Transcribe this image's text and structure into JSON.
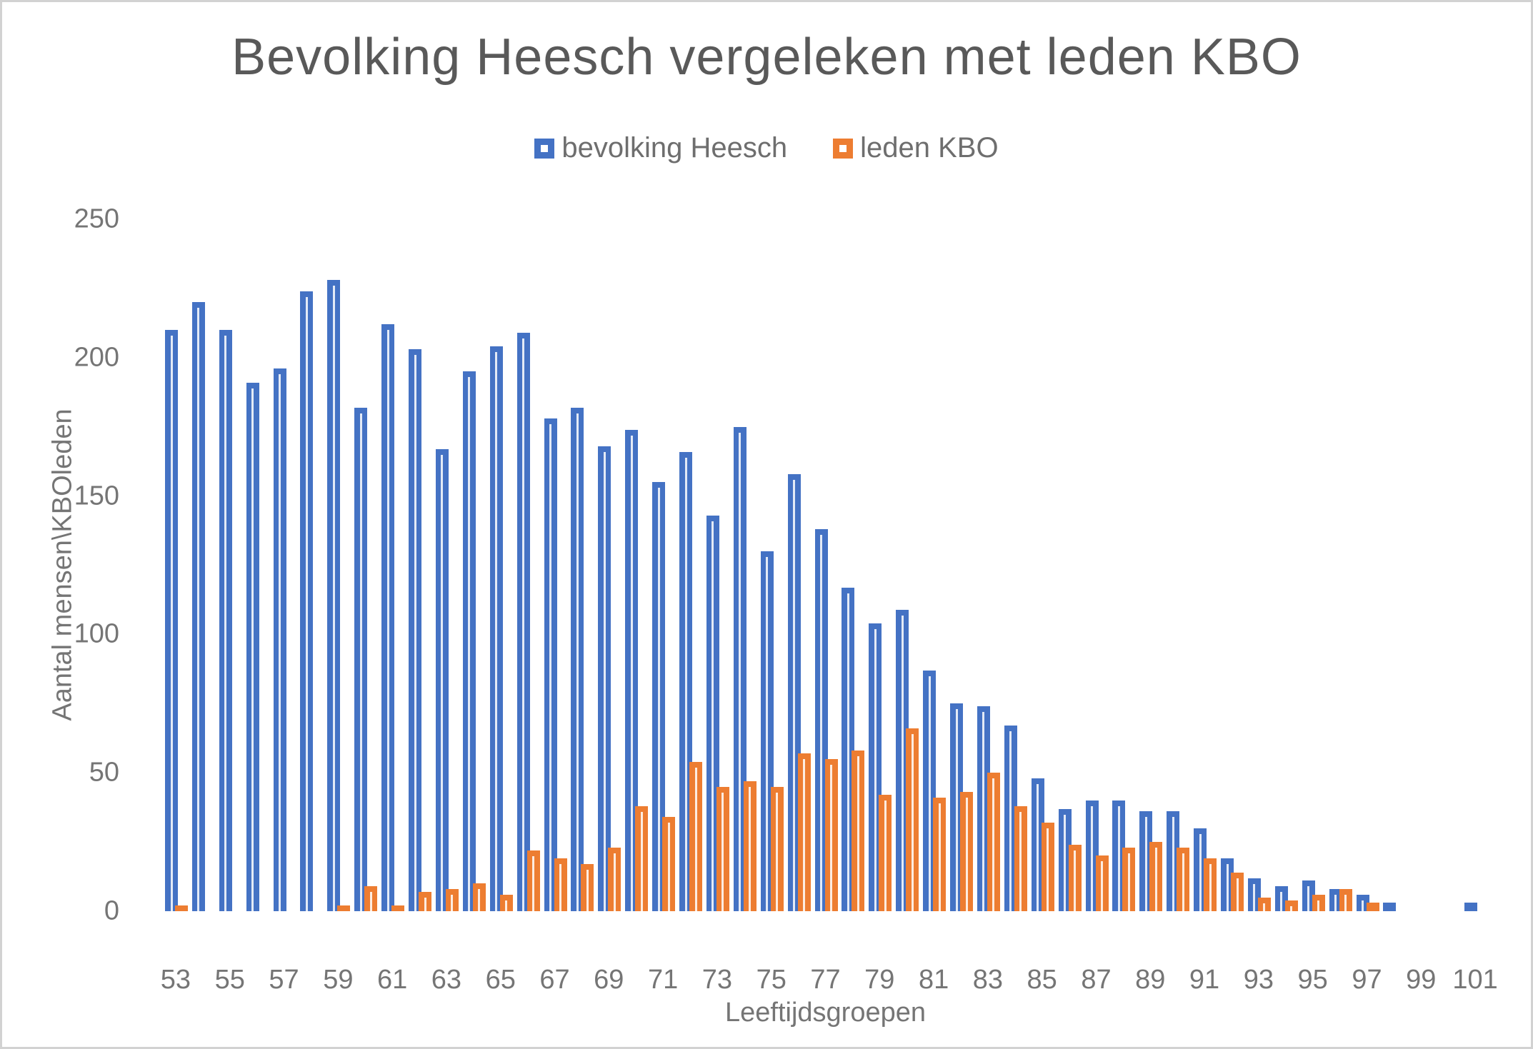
{
  "window": {
    "background": "#ffffff",
    "border_color": "#d2d2d2"
  },
  "chart_data": {
    "type": "bar",
    "title": "Bevolking Heesch vergeleken met leden KBO",
    "xlabel": "Leeftijdsgroepen",
    "ylabel": "Aantal mensen\\KBOleden",
    "categories": [
      53,
      54,
      55,
      56,
      57,
      58,
      59,
      60,
      61,
      62,
      63,
      64,
      65,
      66,
      67,
      68,
      69,
      70,
      71,
      72,
      73,
      74,
      75,
      76,
      77,
      78,
      79,
      80,
      81,
      82,
      83,
      84,
      85,
      86,
      87,
      88,
      89,
      90,
      91,
      92,
      93,
      94,
      95,
      96,
      97,
      98,
      99,
      100,
      101
    ],
    "series": [
      {
        "name": "bevolking Heesch",
        "color": "#4472C4",
        "values": [
          210,
          220,
          210,
          191,
          196,
          224,
          228,
          182,
          212,
          203,
          167,
          195,
          204,
          209,
          178,
          182,
          168,
          174,
          155,
          166,
          143,
          175,
          130,
          158,
          138,
          117,
          104,
          109,
          87,
          75,
          74,
          67,
          48,
          37,
          40,
          40,
          36,
          36,
          30,
          19,
          12,
          9,
          11,
          8,
          6,
          3,
          0,
          0,
          3
        ]
      },
      {
        "name": "leden KBO",
        "color": "#ED7D31",
        "values": [
          2,
          0,
          0,
          0,
          0,
          0,
          2,
          9,
          2,
          7,
          8,
          10,
          6,
          22,
          19,
          17,
          23,
          38,
          34,
          54,
          45,
          47,
          45,
          57,
          55,
          58,
          42,
          66,
          41,
          43,
          50,
          38,
          32,
          24,
          20,
          23,
          25,
          23,
          19,
          14,
          5,
          4,
          6,
          8,
          3,
          0,
          0,
          0,
          0
        ]
      }
    ],
    "ylim": [
      0,
      250
    ],
    "yticks": [
      0,
      50,
      100,
      150,
      200,
      250
    ],
    "xticks": [
      53,
      55,
      57,
      59,
      61,
      63,
      65,
      67,
      69,
      71,
      73,
      75,
      77,
      79,
      81,
      83,
      85,
      87,
      89,
      91,
      93,
      95,
      97,
      99,
      101
    ],
    "grid": false,
    "legend_position": "top-center",
    "text_colors": {
      "title": "#595959",
      "legend": "#6e6e6e",
      "ticks": "#757575"
    }
  }
}
